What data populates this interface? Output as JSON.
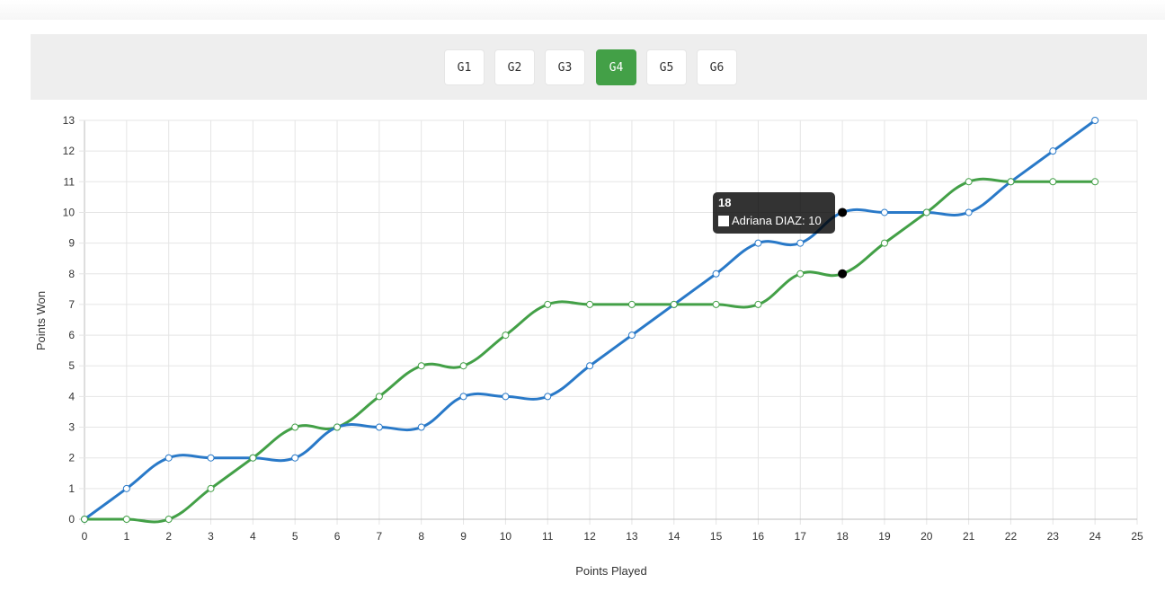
{
  "tabs": [
    {
      "label": "G1",
      "active": false
    },
    {
      "label": "G2",
      "active": false
    },
    {
      "label": "G3",
      "active": false
    },
    {
      "label": "G4",
      "active": true
    },
    {
      "label": "G5",
      "active": false
    },
    {
      "label": "G6",
      "active": false
    }
  ],
  "colors": {
    "accent": "#43a047",
    "series_blue": "#2979c8",
    "series_green": "#43a047",
    "grid": "#e5e5e5"
  },
  "tooltip": {
    "title": "18",
    "label": "Adriana DIAZ: 10"
  },
  "chart_data": {
    "type": "line",
    "xlabel": "Points Played",
    "ylabel": "Points Won",
    "xlim": [
      0,
      25
    ],
    "ylim": [
      0,
      13
    ],
    "grid": true,
    "x": [
      0,
      1,
      2,
      3,
      4,
      5,
      6,
      7,
      8,
      9,
      10,
      11,
      12,
      13,
      14,
      15,
      16,
      17,
      18,
      19,
      20,
      21,
      22,
      23,
      24
    ],
    "series": [
      {
        "name": "Adriana DIAZ",
        "color": "#2979c8",
        "values": [
          0,
          1,
          2,
          2,
          2,
          2,
          3,
          3,
          3,
          4,
          4,
          4,
          5,
          6,
          7,
          8,
          9,
          9,
          10,
          10,
          10,
          10,
          11,
          12,
          13
        ]
      },
      {
        "color": "#43a047",
        "values": [
          0,
          0,
          0,
          1,
          2,
          3,
          3,
          4,
          5,
          5,
          6,
          7,
          7,
          7,
          7,
          7,
          7,
          8,
          8,
          9,
          10,
          11,
          11,
          11,
          11
        ]
      }
    ],
    "highlight_x": 18
  }
}
